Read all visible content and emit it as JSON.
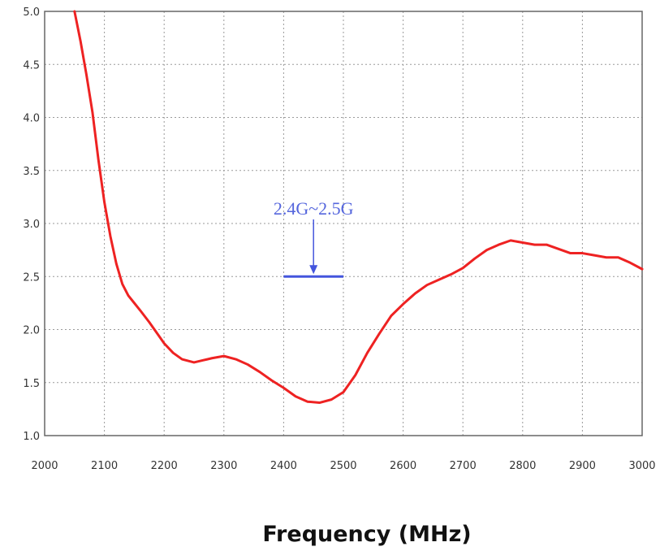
{
  "chart_data": {
    "type": "line",
    "title": "",
    "xlabel": "Frequency (MHz)",
    "ylabel": "",
    "xlim": [
      2000,
      3000
    ],
    "ylim": [
      1.0,
      5.0
    ],
    "xticks": [
      "2000",
      "2100",
      "2200",
      "2300",
      "2400",
      "2500",
      "2600",
      "2700",
      "2800",
      "2900",
      "3000"
    ],
    "yticks": [
      "1.0",
      "1.5",
      "2.0",
      "2.5",
      "3.0",
      "3.5",
      "4.0",
      "4.5",
      "5.0"
    ],
    "grid": true,
    "series": [
      {
        "color": "#ee2222",
        "x": [
          2050,
          2060,
          2070,
          2080,
          2090,
          2100,
          2110,
          2120,
          2130,
          2140,
          2150,
          2160,
          2175,
          2190,
          2200,
          2215,
          2230,
          2250,
          2265,
          2280,
          2300,
          2320,
          2340,
          2360,
          2380,
          2400,
          2420,
          2440,
          2460,
          2480,
          2500,
          2520,
          2540,
          2560,
          2580,
          2600,
          2620,
          2640,
          2660,
          2680,
          2700,
          2720,
          2740,
          2760,
          2780,
          2800,
          2820,
          2840,
          2860,
          2880,
          2900,
          2920,
          2940,
          2960,
          2980,
          3000
        ],
        "values": [
          5.0,
          4.72,
          4.4,
          4.05,
          3.6,
          3.2,
          2.88,
          2.62,
          2.43,
          2.32,
          2.25,
          2.18,
          2.07,
          1.95,
          1.87,
          1.78,
          1.72,
          1.69,
          1.71,
          1.73,
          1.75,
          1.72,
          1.67,
          1.6,
          1.52,
          1.45,
          1.37,
          1.32,
          1.31,
          1.34,
          1.41,
          1.57,
          1.78,
          1.96,
          2.13,
          2.24,
          2.34,
          2.42,
          2.47,
          2.52,
          2.58,
          2.67,
          2.75,
          2.8,
          2.84,
          2.82,
          2.8,
          2.8,
          2.76,
          2.72,
          2.72,
          2.7,
          2.68,
          2.68,
          2.63,
          2.57
        ]
      }
    ],
    "annotations": [
      {
        "text": "2.4G~2.5G",
        "color": "#4455dd",
        "x_range": [
          2400,
          2500
        ],
        "y": 2.5
      }
    ]
  }
}
